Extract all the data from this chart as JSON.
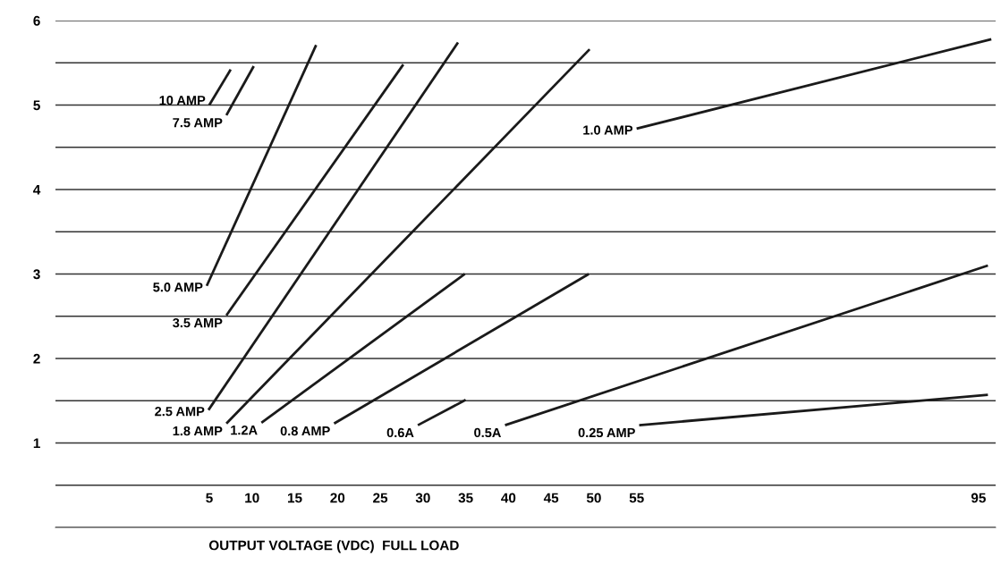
{
  "chart_data": {
    "type": "line",
    "xlabel": "OUTPUT VOLTAGE (VDC)  FULL LOAD",
    "xlim": [
      -13,
      97
    ],
    "xticks": [
      5,
      10,
      15,
      20,
      25,
      30,
      35,
      40,
      45,
      50,
      55,
      95
    ],
    "ylim": [
      0,
      6
    ],
    "yticks": [
      {
        "value": 0,
        "label": null
      },
      {
        "value": 0.5,
        "label": null
      },
      1,
      {
        "value": 1.5,
        "label": null
      },
      2,
      {
        "value": 2.5,
        "label": null
      },
      3,
      {
        "value": 3.5,
        "label": null
      },
      4,
      {
        "value": 4.5,
        "label": null
      },
      5,
      {
        "value": 5.5,
        "label": null
      },
      6
    ],
    "grid": "y",
    "marker": "none",
    "line_style": "solid",
    "series": [
      {
        "name": "10 AMP",
        "color": "#1a1a1a",
        "x": [
          5.0,
          7.5
        ],
        "values": [
          5.0,
          5.42
        ]
      },
      {
        "name": "7.5 AMP",
        "color": "#1a1a1a",
        "x": [
          7.0,
          10.2
        ],
        "values": [
          4.88,
          5.46
        ]
      },
      {
        "name": "5.0 AMP",
        "color": "#1a1a1a",
        "x": [
          4.7,
          17.5
        ],
        "values": [
          2.86,
          5.71
        ]
      },
      {
        "name": "3.5 AMP",
        "color": "#1a1a1a",
        "x": [
          7.0,
          27.7
        ],
        "values": [
          2.51,
          5.48
        ]
      },
      {
        "name": "2.5 AMP",
        "color": "#1a1a1a",
        "x": [
          4.9,
          34.1
        ],
        "values": [
          1.39,
          5.74
        ]
      },
      {
        "name": "1.8 AMP",
        "color": "#1a1a1a",
        "x": [
          7.0,
          49.5
        ],
        "values": [
          1.23,
          5.66
        ]
      },
      {
        "name": "1.2A",
        "color": "#1a1a1a",
        "x": [
          11.1,
          34.9
        ],
        "values": [
          1.24,
          3.0
        ]
      },
      {
        "name": "0.8 AMP",
        "color": "#1a1a1a",
        "x": [
          19.6,
          49.4
        ],
        "values": [
          1.23,
          3.0
        ]
      },
      {
        "name": "0.6A",
        "color": "#1a1a1a",
        "x": [
          29.4,
          35.0
        ],
        "values": [
          1.21,
          1.51
        ]
      },
      {
        "name": "0.5A",
        "color": "#1a1a1a",
        "x": [
          39.6,
          96.1
        ],
        "values": [
          1.21,
          3.1
        ]
      },
      {
        "name": "0.25 AMP",
        "color": "#1a1a1a",
        "x": [
          55.3,
          96.1
        ],
        "values": [
          1.21,
          1.57
        ]
      },
      {
        "name": "1.0 AMP",
        "color": "#1a1a1a",
        "x": [
          55.0,
          96.5
        ],
        "values": [
          4.72,
          5.78
        ]
      }
    ]
  }
}
